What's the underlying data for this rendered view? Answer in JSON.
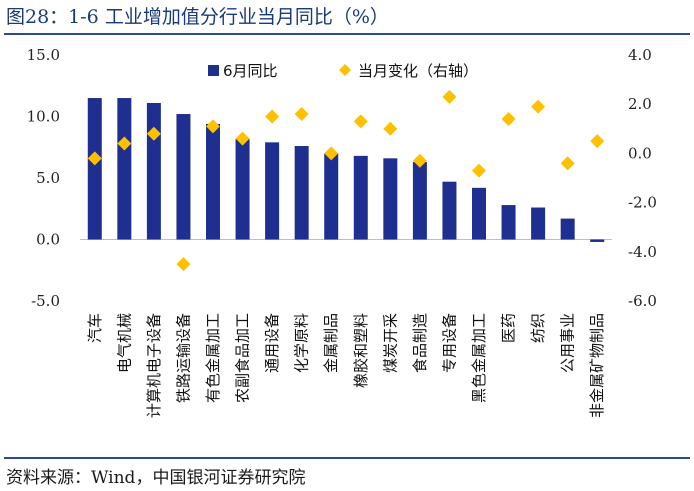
{
  "title": "图28：1-6 工业增加值分行业当月同比（%）",
  "source": "资料来源：Wind，中国银河证券研究院",
  "colors": {
    "bar": "#1f2f8f",
    "marker": "#ffc000",
    "rule": "#2b4c8c"
  },
  "chart_data": {
    "type": "bar+scatter",
    "categories": [
      "汽车",
      "电气机械",
      "计算机电子设备",
      "铁路运输设备",
      "有色金属加工",
      "农副食品加工",
      "通用设备",
      "化学原料",
      "金属制品",
      "橡胶和塑料",
      "煤炭开采",
      "食品制造",
      "专用设备",
      "黑色金属加工",
      "医药",
      "纺织",
      "公用事业",
      "非金属矿物制品"
    ],
    "series": [
      {
        "name": "6月同比",
        "type": "bar",
        "axis": "left",
        "values": [
          11.5,
          11.5,
          11.1,
          10.2,
          9.4,
          8.2,
          7.9,
          7.6,
          7.0,
          6.8,
          6.6,
          6.3,
          4.7,
          4.2,
          2.8,
          2.6,
          1.7,
          -0.2
        ]
      },
      {
        "name": "当月变化（右轴）",
        "type": "scatter",
        "axis": "right",
        "values": [
          -0.2,
          0.4,
          0.8,
          -4.5,
          1.1,
          0.6,
          1.5,
          1.6,
          0.0,
          1.3,
          1.0,
          -0.3,
          2.3,
          -0.7,
          1.4,
          1.9,
          -0.4,
          0.5
        ]
      }
    ],
    "y_left": {
      "min": -5,
      "max": 15,
      "ticks": [
        "-5.0",
        "0.0",
        "5.0",
        "10.0",
        "15.0"
      ]
    },
    "y_right": {
      "min": -6,
      "max": 4,
      "ticks": [
        "-6.0",
        "-4.0",
        "-2.0",
        "0.0",
        "2.0",
        "4.0"
      ]
    },
    "legend": {
      "position": "top"
    }
  }
}
